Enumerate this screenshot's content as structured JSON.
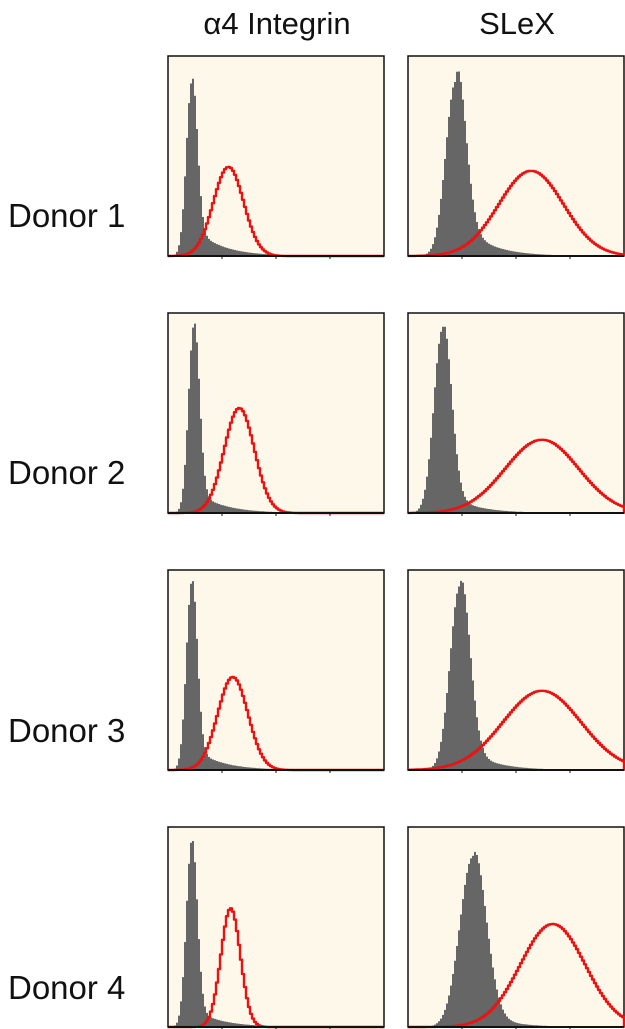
{
  "columns": [
    {
      "label": "α4 Integrin"
    },
    {
      "label": "SLeX"
    }
  ],
  "rows": [
    {
      "label": "Donor 1"
    },
    {
      "label": "Donor 2"
    },
    {
      "label": "Donor 3"
    },
    {
      "label": "Donor 4"
    }
  ],
  "colors": {
    "panel_background": "#fdf8e9",
    "control_fill": "#666666",
    "stained_line": "#ee1111",
    "axis": "#111111"
  },
  "chart_data": [
    {
      "type": "area",
      "column": "α4 Integrin",
      "row": "Donor 1",
      "xlim": [
        0,
        1
      ],
      "ylim": [
        0,
        1
      ],
      "series": [
        {
          "kind": "filled",
          "peaks": [
            {
              "x": 0.11,
              "sd": 0.025,
              "h": 0.88
            }
          ],
          "tail": 0.16
        },
        {
          "kind": "line",
          "peaks": [
            {
              "x": 0.28,
              "sd": 0.07,
              "h": 0.45
            }
          ]
        }
      ]
    },
    {
      "type": "area",
      "column": "SLeX",
      "row": "Donor 1",
      "xlim": [
        0,
        1
      ],
      "ylim": [
        0,
        1
      ],
      "series": [
        {
          "kind": "filled",
          "peaks": [
            {
              "x": 0.22,
              "sd": 0.045,
              "h": 0.88
            }
          ],
          "tail": 0.22
        },
        {
          "kind": "line",
          "peaks": [
            {
              "x": 0.57,
              "sd": 0.15,
              "h": 0.43
            }
          ]
        }
      ]
    },
    {
      "type": "area",
      "column": "α4 Integrin",
      "row": "Donor 2",
      "xlim": [
        0,
        1
      ],
      "ylim": [
        0,
        1
      ],
      "series": [
        {
          "kind": "filled",
          "peaks": [
            {
              "x": 0.12,
              "sd": 0.025,
              "h": 0.95
            }
          ],
          "tail": 0.12
        },
        {
          "kind": "line",
          "peaks": [
            {
              "x": 0.33,
              "sd": 0.07,
              "h": 0.53
            }
          ]
        }
      ]
    },
    {
      "type": "area",
      "column": "SLeX",
      "row": "Donor 2",
      "xlim": [
        0,
        1
      ],
      "ylim": [
        0,
        1
      ],
      "series": [
        {
          "kind": "filled",
          "peaks": [
            {
              "x": 0.16,
              "sd": 0.04,
              "h": 0.93
            }
          ],
          "tail": 0.12
        },
        {
          "kind": "line",
          "peaks": [
            {
              "x": 0.62,
              "sd": 0.17,
              "h": 0.37
            }
          ]
        }
      ]
    },
    {
      "type": "area",
      "column": "α4 Integrin",
      "row": "Donor 3",
      "xlim": [
        0,
        1
      ],
      "ylim": [
        0,
        1
      ],
      "series": [
        {
          "kind": "filled",
          "peaks": [
            {
              "x": 0.11,
              "sd": 0.025,
              "h": 0.95
            }
          ],
          "tail": 0.12
        },
        {
          "kind": "line",
          "peaks": [
            {
              "x": 0.3,
              "sd": 0.07,
              "h": 0.47
            }
          ]
        }
      ]
    },
    {
      "type": "area",
      "column": "SLeX",
      "row": "Donor 3",
      "xlim": [
        0,
        1
      ],
      "ylim": [
        0,
        1
      ],
      "series": [
        {
          "kind": "filled",
          "peaks": [
            {
              "x": 0.24,
              "sd": 0.045,
              "h": 0.93
            }
          ],
          "tail": 0.14
        },
        {
          "kind": "line",
          "peaks": [
            {
              "x": 0.62,
              "sd": 0.18,
              "h": 0.4
            }
          ]
        }
      ]
    },
    {
      "type": "area",
      "column": "α4 Integrin",
      "row": "Donor 4",
      "xlim": [
        0,
        1
      ],
      "ylim": [
        0,
        1
      ],
      "series": [
        {
          "kind": "filled",
          "peaks": [
            {
              "x": 0.11,
              "sd": 0.025,
              "h": 0.94
            }
          ],
          "tail": 0.1
        },
        {
          "kind": "line",
          "peaks": [
            {
              "x": 0.29,
              "sd": 0.045,
              "h": 0.6
            }
          ]
        }
      ]
    },
    {
      "type": "area",
      "column": "SLeX",
      "row": "Donor 4",
      "xlim": [
        0,
        1
      ],
      "ylim": [
        0,
        1
      ],
      "series": [
        {
          "kind": "filled",
          "peaks": [
            {
              "x": 0.3,
              "sd": 0.06,
              "h": 0.86
            }
          ],
          "tail": 0.1
        },
        {
          "kind": "line",
          "peaks": [
            {
              "x": 0.67,
              "sd": 0.15,
              "h": 0.52
            }
          ]
        }
      ]
    }
  ]
}
